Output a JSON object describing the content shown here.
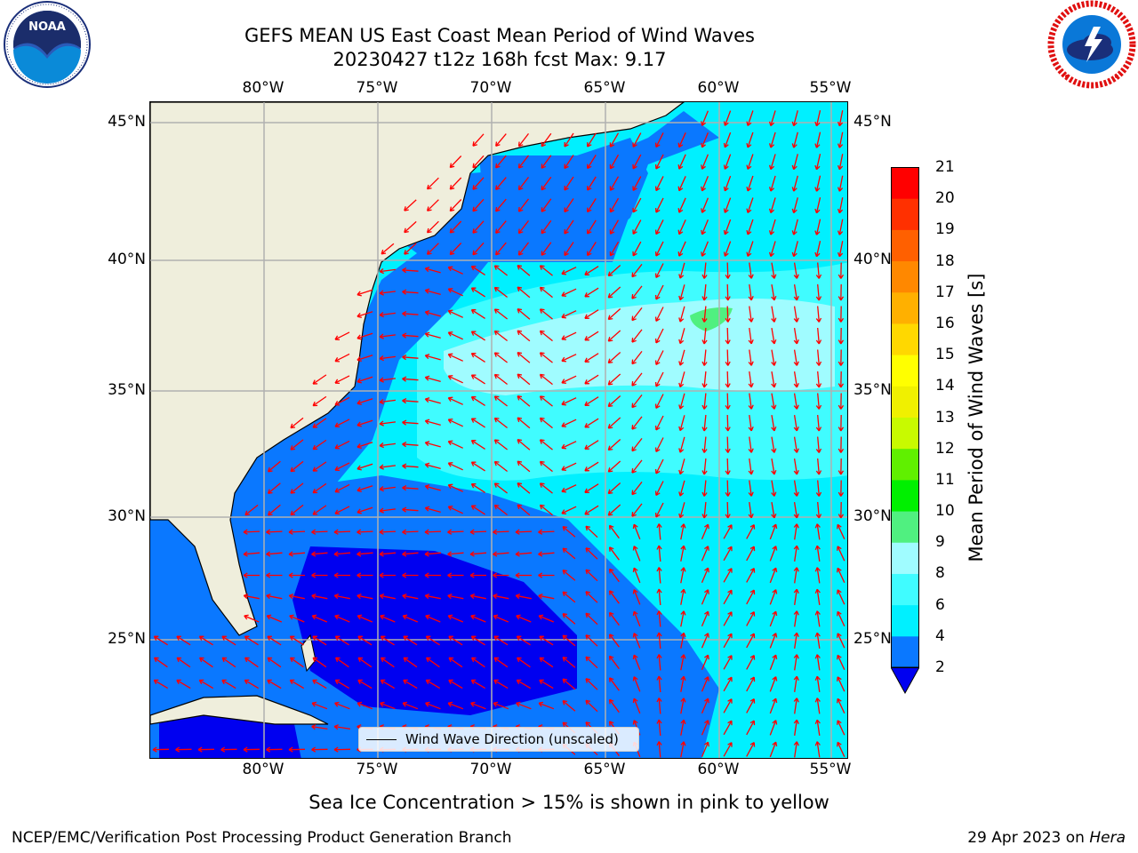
{
  "title": {
    "line1": "GEFS MEAN US East Coast Mean Period of Wind Waves",
    "line2": "20230427 t12z 168h fcst   Max: 9.17"
  },
  "logos": {
    "noaa": {
      "text": "NOAA",
      "ring_text": "NATIONAL OCEANIC AND ATMOSPHERIC ADMINISTRATION · U.S. DEPARTMENT OF COMMERCE"
    },
    "nws": {
      "ring_text": "NATIONAL WEATHER SERVICE"
    }
  },
  "map": {
    "lon_ticks": [
      "80°W",
      "75°W",
      "70°W",
      "65°W",
      "60°W",
      "55°W"
    ],
    "lat_ticks": [
      "45°N",
      "40°N",
      "35°N",
      "30°N",
      "25°N"
    ],
    "lon_range": [
      -85,
      -54.3
    ],
    "lat_range": [
      20.5,
      45.8
    ],
    "land_color": "#efeedc",
    "grid": true,
    "arrow_color": "#ff0000",
    "legend": {
      "label": "Wind Wave Direction (unscaled)",
      "placement": "lower-center"
    }
  },
  "colorbar": {
    "label": "Mean Period of Wind Waves [s]",
    "ticks": [
      "2",
      "4",
      "6",
      "8",
      "9",
      "10",
      "11",
      "12",
      "13",
      "14",
      "15",
      "16",
      "17",
      "18",
      "19",
      "20",
      "21"
    ],
    "colors": [
      "#0a78ff",
      "#00f0ff",
      "#40fcff",
      "#a0fcff",
      "#50f080",
      "#00f000",
      "#60f000",
      "#c8fa00",
      "#f0f000",
      "#ffff00",
      "#ffd800",
      "#ffb000",
      "#ff8800",
      "#ff6000",
      "#ff3000",
      "#ff0000"
    ],
    "under_color": "#0000f0"
  },
  "subtitle": "Sea Ice Concentration > 15% is shown in pink to yellow",
  "footer": {
    "left": "NCEP/EMC/Verification Post Processing Product Generation Branch",
    "right_prefix": "29 Apr 2023 on ",
    "right_machine": "Hera"
  }
}
